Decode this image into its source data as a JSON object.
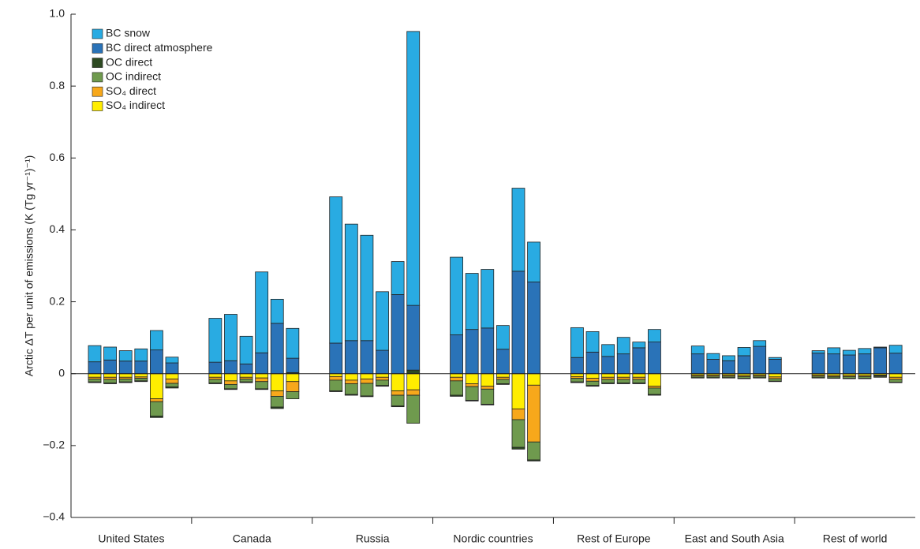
{
  "chart_data": {
    "type": "stacked-bar",
    "y_label": "Arctic ΔT per unit of emissions (K (Tg yr⁻¹)⁻¹)",
    "group_labels": [
      "United States",
      "Canada",
      "Russia",
      "Nordic countries",
      "Rest of Europe",
      "East and South Asia",
      "Rest of world"
    ],
    "categories": [
      null,
      null,
      null,
      null,
      null,
      null,
      null,
      null,
      null,
      null,
      null,
      null,
      null,
      null,
      null,
      null,
      null,
      null,
      null,
      null,
      null,
      null,
      null,
      null,
      null,
      null,
      null,
      null,
      null,
      null,
      null,
      null,
      null,
      null,
      null,
      null,
      null,
      null,
      null,
      null,
      null,
      null
    ],
    "ylim": [
      -0.4,
      1.0
    ],
    "yticks": [
      {
        "value": -0.4,
        "label": "−0.4"
      },
      {
        "value": -0.2,
        "label": "−0.2"
      },
      0,
      0.2,
      0.4,
      0.6,
      0.8,
      {
        "value": 1.0,
        "label": "1.0"
      }
    ],
    "series": [
      {
        "name": "BC snow",
        "color": "#29abe2",
        "values": [
          0.045,
          0.036,
          0.029,
          0.034,
          0.054,
          0.016,
          0.122,
          0.129,
          0.077,
          0.225,
          0.067,
          0.083,
          0.407,
          0.324,
          0.293,
          0.163,
          0.092,
          0.762,
          0.216,
          0.156,
          0.163,
          0.066,
          0.231,
          0.111,
          0.083,
          0.057,
          0.033,
          0.046,
          0.016,
          0.035,
          0.022,
          0.016,
          0.014,
          0.023,
          0.016,
          0.005,
          0.007,
          0.017,
          0.013,
          0.015,
          0.002,
          0.022
        ]
      },
      {
        "name": "BC direct atmosphere",
        "color": "#2a73b8",
        "values": [
          0.033,
          0.038,
          0.035,
          0.035,
          0.066,
          0.03,
          0.032,
          0.036,
          0.027,
          0.058,
          0.14,
          0.04,
          0.085,
          0.092,
          0.092,
          0.065,
          0.22,
          0.18,
          0.108,
          0.123,
          0.127,
          0.068,
          0.285,
          0.255,
          0.045,
          0.06,
          0.048,
          0.055,
          0.072,
          0.088,
          0.055,
          0.04,
          0.036,
          0.05,
          0.076,
          0.04,
          0.057,
          0.055,
          0.052,
          0.055,
          0.072,
          0.057
        ]
      },
      {
        "name": "OC direct",
        "color": "#2d4a22",
        "values": [
          -0.002,
          -0.002,
          -0.002,
          -0.002,
          -0.004,
          -0.003,
          -0.002,
          -0.002,
          -0.002,
          -0.002,
          -0.004,
          0.003,
          -0.002,
          -0.002,
          -0.002,
          -0.002,
          -0.002,
          0.01,
          -0.003,
          -0.002,
          -0.002,
          -0.002,
          -0.005,
          -0.003,
          -0.002,
          -0.002,
          -0.002,
          -0.002,
          -0.002,
          -0.002,
          -0.001,
          -0.001,
          -0.001,
          -0.001,
          -0.001,
          -0.001,
          -0.001,
          -0.001,
          -0.001,
          -0.001,
          -0.001,
          -0.001
        ]
      },
      {
        "name": "OC indirect",
        "color": "#6f9a4e",
        "values": [
          -0.008,
          -0.01,
          -0.008,
          -0.007,
          -0.04,
          -0.01,
          -0.01,
          -0.012,
          -0.008,
          -0.02,
          -0.03,
          -0.02,
          -0.03,
          -0.03,
          -0.035,
          -0.015,
          -0.03,
          -0.078,
          -0.04,
          -0.038,
          -0.042,
          -0.012,
          -0.077,
          -0.05,
          -0.01,
          -0.012,
          -0.01,
          -0.01,
          -0.01,
          -0.018,
          -0.004,
          -0.004,
          -0.004,
          -0.005,
          -0.004,
          -0.007,
          -0.004,
          -0.004,
          -0.005,
          -0.005,
          -0.003,
          -0.008
        ]
      },
      {
        "name": "SO₄ direct",
        "color": "#f7a81b",
        "values": [
          -0.005,
          -0.006,
          -0.005,
          -0.004,
          -0.008,
          -0.012,
          -0.006,
          -0.01,
          -0.005,
          -0.01,
          -0.015,
          -0.028,
          -0.01,
          -0.01,
          -0.012,
          -0.008,
          -0.012,
          -0.015,
          -0.01,
          -0.008,
          -0.008,
          -0.006,
          -0.03,
          -0.158,
          -0.005,
          -0.008,
          -0.006,
          -0.006,
          -0.006,
          -0.005,
          -0.003,
          -0.003,
          -0.003,
          -0.003,
          -0.003,
          -0.005,
          -0.003,
          -0.003,
          -0.003,
          -0.003,
          -0.002,
          -0.006
        ]
      },
      {
        "name": "SO₄ indirect",
        "color": "#ffed00",
        "values": [
          -0.01,
          -0.01,
          -0.01,
          -0.009,
          -0.07,
          -0.015,
          -0.01,
          -0.02,
          -0.01,
          -0.012,
          -0.048,
          -0.022,
          -0.008,
          -0.018,
          -0.015,
          -0.01,
          -0.048,
          -0.045,
          -0.01,
          -0.028,
          -0.035,
          -0.01,
          -0.098,
          -0.032,
          -0.008,
          -0.013,
          -0.01,
          -0.01,
          -0.01,
          -0.035,
          -0.004,
          -0.004,
          -0.004,
          -0.005,
          -0.004,
          -0.009,
          -0.004,
          -0.005,
          -0.005,
          -0.005,
          -0.004,
          -0.01
        ]
      }
    ]
  }
}
